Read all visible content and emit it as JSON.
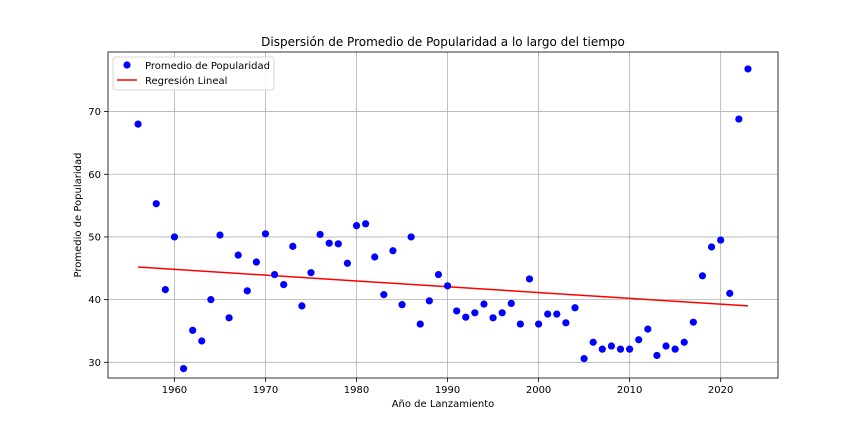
{
  "chart_data": {
    "type": "scatter",
    "title": "Dispersión de Promedio de Popularidad a lo largo del tiempo",
    "xlabel": "Año de Lanzamiento",
    "ylabel": "Promedio de Popularidad",
    "xlim": [
      1952.7,
      2026.3
    ],
    "ylim": [
      27.5,
      79.5
    ],
    "xticks": [
      1960,
      1970,
      1980,
      1990,
      2000,
      2010,
      2020
    ],
    "yticks": [
      30,
      40,
      50,
      60,
      70
    ],
    "grid": true,
    "legend_position": "top-left",
    "series": [
      {
        "name": "Promedio de Popularidad",
        "kind": "scatter",
        "color": "#0000ff",
        "x": [
          1956,
          1958,
          1959,
          1960,
          1961,
          1962,
          1963,
          1964,
          1965,
          1966,
          1967,
          1968,
          1969,
          1970,
          1971,
          1972,
          1973,
          1974,
          1975,
          1976,
          1977,
          1978,
          1979,
          1980,
          1981,
          1982,
          1983,
          1984,
          1985,
          1986,
          1987,
          1988,
          1989,
          1990,
          1991,
          1992,
          1993,
          1994,
          1995,
          1996,
          1997,
          1998,
          1999,
          2000,
          2001,
          2002,
          2003,
          2004,
          2005,
          2006,
          2007,
          2008,
          2009,
          2010,
          2011,
          2012,
          2013,
          2014,
          2015,
          2016,
          2017,
          2018,
          2019,
          2020,
          2021,
          2022,
          2023
        ],
        "y": [
          68.0,
          55.3,
          41.6,
          50.0,
          29.0,
          35.1,
          33.4,
          40.0,
          50.3,
          37.1,
          47.1,
          41.4,
          46.0,
          50.5,
          44.0,
          42.4,
          48.5,
          39.0,
          44.3,
          50.4,
          49.0,
          48.9,
          45.8,
          51.8,
          52.1,
          46.8,
          40.8,
          47.8,
          39.2,
          50.0,
          36.1,
          39.8,
          44.0,
          42.2,
          38.2,
          37.2,
          37.9,
          39.3,
          37.1,
          37.9,
          39.4,
          36.1,
          43.3,
          36.1,
          37.7,
          37.7,
          36.3,
          38.7,
          30.6,
          33.2,
          32.1,
          32.6,
          32.1,
          32.1,
          33.6,
          35.3,
          31.1,
          32.6,
          32.1,
          33.2,
          36.4,
          43.8,
          48.4,
          49.5,
          41.0,
          68.8,
          76.8
        ]
      },
      {
        "name": "Regresión Lineal",
        "kind": "line",
        "color": "#ff0000",
        "x": [
          1956,
          2023
        ],
        "y": [
          45.2,
          39.0
        ]
      }
    ]
  }
}
